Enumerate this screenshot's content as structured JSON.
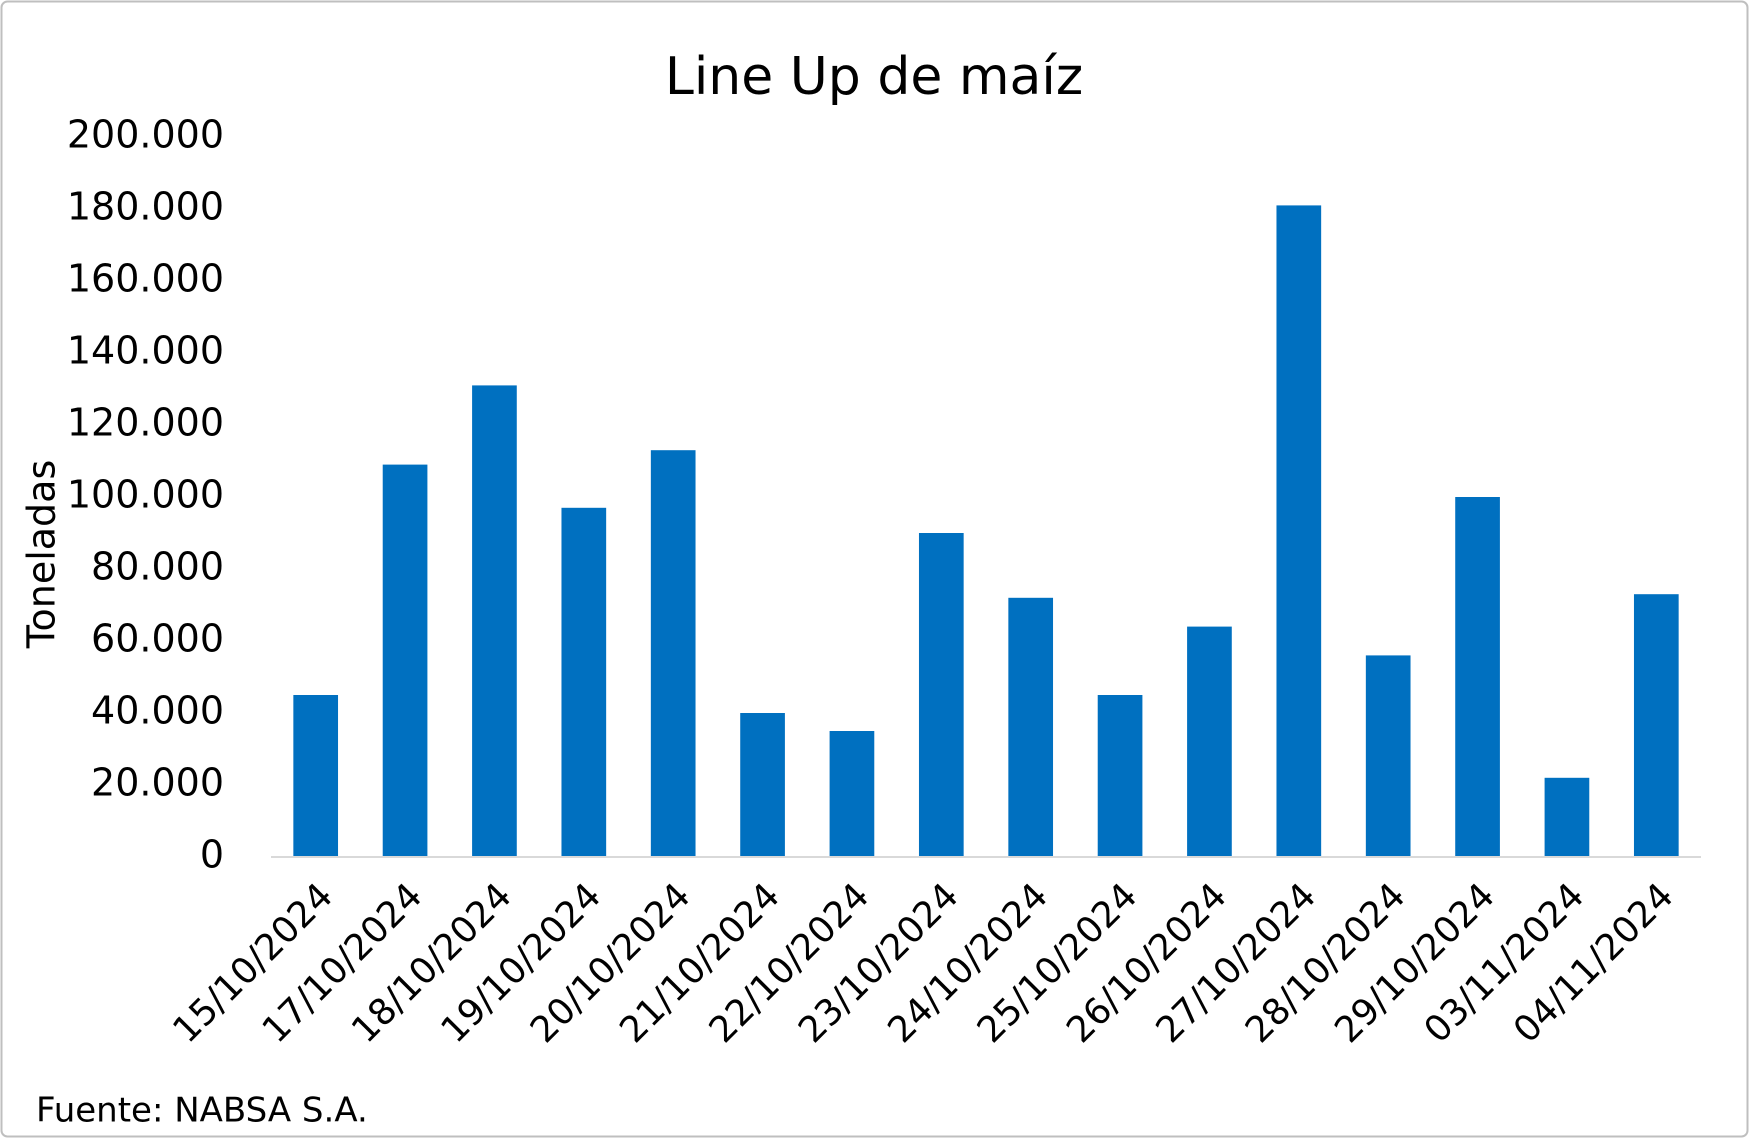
{
  "chart_data": {
    "type": "bar",
    "title": "Line Up de maíz",
    "y_label": "Toneladas",
    "source": "Fuente: NABSA S.A.",
    "categories": [
      "15/10/2024",
      "17/10/2024",
      "18/10/2024",
      "19/10/2024",
      "20/10/2024",
      "21/10/2024",
      "22/10/2024",
      "23/10/2024",
      "24/10/2024",
      "25/10/2024",
      "26/10/2024",
      "27/10/2024",
      "28/10/2024",
      "29/10/2024",
      "03/11/2024",
      "04/11/2024"
    ],
    "values": [
      45000,
      109000,
      131000,
      97000,
      113000,
      40000,
      35000,
      90000,
      72000,
      45000,
      64000,
      181000,
      56000,
      100000,
      22000,
      73000
    ],
    "color": "#0070c0",
    "ylim": [
      0,
      200000
    ],
    "yticks": [
      0,
      {
        "value": 20000,
        "label": "20.000"
      },
      {
        "value": 40000,
        "label": "40.000"
      },
      {
        "value": 60000,
        "label": "60.000"
      },
      {
        "value": 80000,
        "label": "80.000"
      },
      {
        "value": 100000,
        "label": "100.000"
      },
      {
        "value": 120000,
        "label": "120.000"
      },
      {
        "value": 140000,
        "label": "140.000"
      },
      {
        "value": 160000,
        "label": "160.000"
      },
      {
        "value": 180000,
        "label": "180.000"
      },
      {
        "value": 200000,
        "label": "200.000"
      }
    ],
    "grid": false
  }
}
